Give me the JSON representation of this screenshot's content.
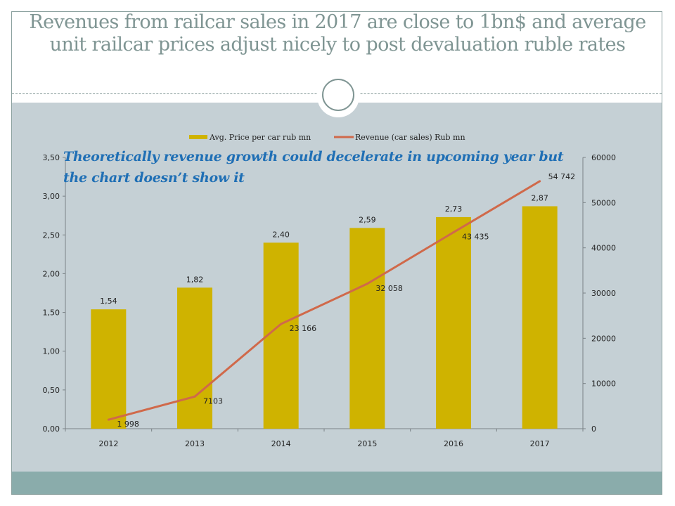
{
  "slide": {
    "title": "Revenues from railcar sales in 2017 are close to 1bn$ and average unit railcar prices adjust nicely to post devaluation ruble rates",
    "annotation": "Theoretically revenue growth could decelerate in upcoming year but the chart doesn’t show it",
    "colors": {
      "title": "#7f9593",
      "panel": "#c5d0d5",
      "band": "#8aacab",
      "annotation": "#1f6fb5"
    }
  },
  "chart_data": {
    "type": "bar",
    "title": "",
    "categories": [
      "2012",
      "2013",
      "2014",
      "2015",
      "2016",
      "2017"
    ],
    "series": [
      {
        "name": "Avg. Price per car rub mn",
        "type": "bar",
        "axis": "left",
        "color": "#cfb300",
        "values": [
          1.54,
          1.82,
          2.4,
          2.59,
          2.73,
          2.87
        ],
        "labels": [
          "1,54",
          "1,82",
          "2,40",
          "2,59",
          "2,73",
          "2,87"
        ]
      },
      {
        "name": "Revenue (car sales) Rub mn",
        "type": "line",
        "axis": "right",
        "color": "#d0694a",
        "values": [
          1998,
          7103,
          23166,
          32058,
          43435,
          54742
        ],
        "labels": [
          "1 998",
          "7103",
          "23 166",
          "32 058",
          "43 435",
          "54 742"
        ]
      }
    ],
    "left_axis": {
      "range": [
        0,
        3.5
      ],
      "ticks": [
        0,
        0.5,
        1.0,
        1.5,
        2.0,
        2.5,
        3.0,
        3.5
      ],
      "tick_labels": [
        "0,00",
        "0,50",
        "1,00",
        "1,50",
        "2,00",
        "2,50",
        "3,00",
        "3,50"
      ]
    },
    "right_axis": {
      "range": [
        0,
        60000
      ],
      "ticks": [
        0,
        10000,
        20000,
        30000,
        40000,
        50000,
        60000
      ],
      "tick_labels": [
        "0",
        "10000",
        "20000",
        "30000",
        "40000",
        "50000",
        "60000"
      ]
    },
    "xlabel": "",
    "ylabel": "",
    "grid": false,
    "legend": "top-center"
  }
}
